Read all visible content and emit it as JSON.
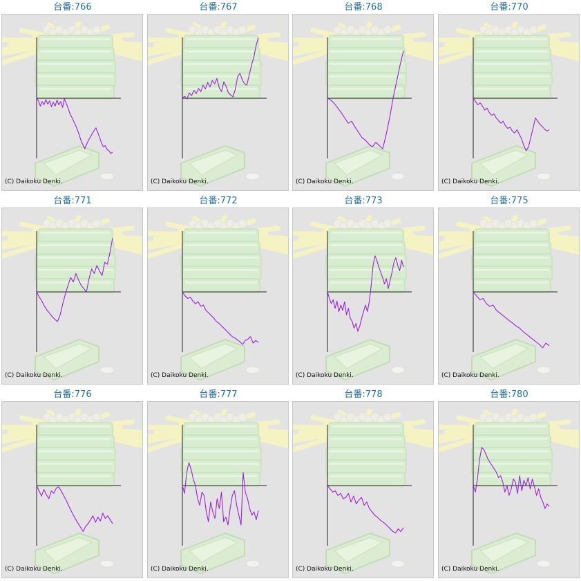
{
  "colors": {
    "title": "#1f6f9f",
    "line": "#9b1fe0",
    "axis": "#222222",
    "panel_bg": "#e3e3e3"
  },
  "copyright": "(C) Daikoku Denki.",
  "chart_data": [
    {
      "type": "line",
      "title": "台番:766",
      "y": [
        0,
        -4,
        -12,
        -5,
        -10,
        -2,
        -9,
        -4,
        -13,
        -6,
        -12,
        -3,
        -10,
        -5,
        -14,
        -1,
        -8,
        -15,
        -24,
        -29,
        -35,
        -41,
        -48,
        -56,
        -65,
        -71,
        -77,
        -70,
        -64,
        -59,
        -54,
        -49,
        -45,
        -52,
        -60,
        -68,
        -74,
        -72,
        -78,
        -80,
        -84,
        -82
      ]
    },
    {
      "type": "line",
      "title": "台番:767",
      "y": [
        0,
        3,
        -1,
        8,
        4,
        12,
        7,
        15,
        10,
        20,
        14,
        24,
        17,
        27,
        22,
        30,
        16,
        10,
        25,
        18,
        8,
        5,
        2,
        14,
        33,
        38,
        28,
        22,
        20,
        35,
        50,
        62,
        80,
        92
      ]
    },
    {
      "type": "line",
      "title": "台番:768",
      "y": [
        0,
        -3,
        -8,
        -15,
        -22,
        -30,
        -38,
        -35,
        -44,
        -52,
        -60,
        -64,
        -70,
        -74,
        -67,
        -72,
        -77,
        -55,
        -30,
        0,
        25,
        50,
        72
      ]
    },
    {
      "type": "line",
      "title": "台番:770",
      "y": [
        0,
        -5,
        -10,
        -7,
        -12,
        -18,
        -15,
        -22,
        -26,
        -24,
        -30,
        -34,
        -38,
        -35,
        -42,
        -46,
        -44,
        -50,
        -53,
        -48,
        -55,
        -62,
        -72,
        -80,
        -74,
        -60,
        -45,
        -30,
        -35,
        -40,
        -43,
        -47,
        -50,
        -48
      ]
    },
    {
      "type": "line",
      "title": "台番:771",
      "y": [
        0,
        -8,
        -14,
        -22,
        -28,
        -33,
        -38,
        -42,
        -45,
        -35,
        -18,
        -3,
        10,
        22,
        15,
        28,
        18,
        10,
        5,
        0,
        20,
        35,
        28,
        40,
        32,
        25,
        45,
        42,
        60,
        82
      ]
    },
    {
      "type": "line",
      "title": "台番:772",
      "y": [
        0,
        -6,
        -10,
        -8,
        -14,
        -18,
        -15,
        -22,
        -20,
        -28,
        -32,
        -36,
        -40,
        -45,
        -48,
        -52,
        -56,
        -60,
        -64,
        -68,
        -70,
        -73,
        -76,
        -80,
        -74,
        -72,
        -68,
        -78,
        -74,
        -77
      ]
    },
    {
      "type": "line",
      "title": "台番:773",
      "y": [
        0,
        -10,
        -18,
        -12,
        -25,
        -14,
        -30,
        -20,
        -28,
        -15,
        -35,
        -25,
        -40,
        -45,
        -55,
        -48,
        -60,
        -52,
        -40,
        -30,
        -20,
        -30,
        -15,
        10,
        40,
        55,
        48,
        38,
        30,
        22,
        12,
        20,
        5,
        18,
        30,
        45,
        52,
        40,
        32,
        48,
        38
      ]
    },
    {
      "type": "line",
      "title": "台番:775",
      "y": [
        0,
        -6,
        -12,
        -10,
        -18,
        -22,
        -20,
        -28,
        -32,
        -36,
        -40,
        -44,
        -48,
        -52,
        -55,
        -60,
        -64,
        -68,
        -72,
        -76,
        -80,
        -85,
        -78,
        -82
      ]
    },
    {
      "type": "line",
      "title": "台番:776",
      "y": [
        0,
        -8,
        -16,
        -6,
        -14,
        -20,
        -8,
        -12,
        -4,
        -2,
        -8,
        -15,
        -22,
        -30,
        -38,
        -45,
        -52,
        -58,
        -64,
        -70,
        -62,
        -58,
        -52,
        -46,
        -56,
        -48,
        -54,
        -42,
        -50,
        -46,
        -52,
        -58
      ]
    },
    {
      "type": "line",
      "title": "台番:777",
      "y": [
        0,
        -12,
        20,
        35,
        25,
        10,
        0,
        -20,
        -30,
        -10,
        -15,
        -40,
        -55,
        -25,
        -40,
        -50,
        -20,
        -35,
        -10,
        -55,
        -48,
        -60,
        -35,
        -15,
        -8,
        -30,
        -45,
        -60,
        20,
        -10,
        -20,
        -35,
        -45,
        -40,
        -52,
        -38
      ]
    },
    {
      "type": "line",
      "title": "台番:778",
      "y": [
        0,
        -5,
        -10,
        -8,
        -15,
        -12,
        -20,
        -18,
        -12,
        -25,
        -16,
        -28,
        -22,
        -18,
        -30,
        -25,
        -35,
        -40,
        -45,
        -48,
        -52,
        -55,
        -58,
        -62,
        -66,
        -70,
        -72,
        -66,
        -70,
        -64
      ]
    },
    {
      "type": "line",
      "title": "台番:780",
      "y": [
        0,
        -10,
        10,
        40,
        58,
        55,
        48,
        40,
        35,
        30,
        25,
        20,
        12,
        15,
        5,
        -10,
        0,
        -15,
        -5,
        10,
        5,
        -12,
        15,
        -8,
        8,
        0,
        12,
        -5,
        10,
        -2,
        -15,
        -5,
        -18,
        -25,
        -35,
        -28,
        -32
      ]
    }
  ]
}
